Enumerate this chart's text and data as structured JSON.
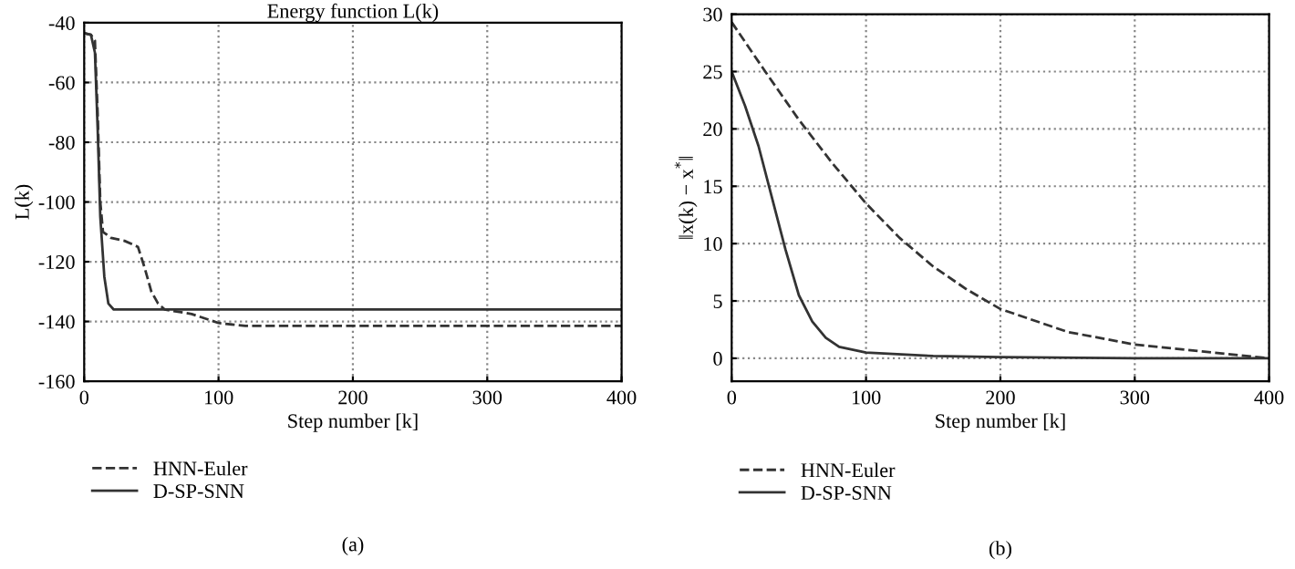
{
  "chart_data": [
    {
      "type": "line",
      "title": "Energy function L(k)",
      "xlabel": "Step number [k]",
      "ylabel": "L(k)",
      "xlim": [
        0,
        400
      ],
      "xticks": [
        0,
        100,
        200,
        300,
        400
      ],
      "ylim": [
        -160,
        -40
      ],
      "yticks": [
        -160,
        -140,
        -120,
        -100,
        -80,
        -60,
        -40
      ],
      "grid": true,
      "legend": "bottom",
      "annotations": [
        "(a)"
      ],
      "series": [
        {
          "name": "HNN-Euler",
          "color": "#333333",
          "line_style": "dashed",
          "x": [
            0,
            5,
            8,
            10,
            12,
            14,
            20,
            30,
            40,
            45,
            50,
            55,
            60,
            80,
            100,
            120,
            400
          ],
          "values": [
            -43.5,
            -44,
            -46,
            -70,
            -100,
            -110,
            -112,
            -113,
            -115,
            -122,
            -130,
            -134,
            -136,
            -137.5,
            -140.5,
            -141.5,
            -141.5
          ]
        },
        {
          "name": "D-SP-SNN",
          "color": "#333333",
          "line_style": "solid",
          "x": [
            0,
            5,
            8,
            10,
            12,
            15,
            18,
            22,
            400
          ],
          "values": [
            -43.5,
            -44,
            -50,
            -75,
            -105,
            -125,
            -134,
            -136,
            -136
          ]
        }
      ]
    },
    {
      "type": "line",
      "xlabel": "Step number [k]",
      "ylabel": "‖x(k) − x$^{*}$‖",
      "xlim": [
        0,
        400
      ],
      "xticks": [
        0,
        100,
        200,
        300,
        400
      ],
      "ylim": [
        -2,
        30
      ],
      "yticks": [
        0,
        5,
        10,
        15,
        20,
        25,
        30
      ],
      "grid": true,
      "legend": "bottom",
      "annotations": [
        "(b)"
      ],
      "series": [
        {
          "name": "HNN-Euler",
          "color": "#333333",
          "line_style": "dashed",
          "x": [
            0,
            25,
            50,
            75,
            100,
            125,
            150,
            175,
            200,
            250,
            300,
            350,
            400
          ],
          "values": [
            29.3,
            25,
            20.8,
            17,
            13.5,
            10.5,
            8,
            6,
            4.3,
            2.3,
            1.2,
            0.6,
            0
          ]
        },
        {
          "name": "D-SP-SNN",
          "color": "#333333",
          "line_style": "solid",
          "x": [
            0,
            10,
            20,
            30,
            40,
            50,
            60,
            70,
            80,
            100,
            150,
            200,
            300,
            400
          ],
          "values": [
            25,
            22,
            18.5,
            14,
            9.5,
            5.5,
            3.2,
            1.8,
            1.0,
            0.5,
            0.2,
            0.1,
            0,
            0
          ]
        }
      ]
    }
  ]
}
